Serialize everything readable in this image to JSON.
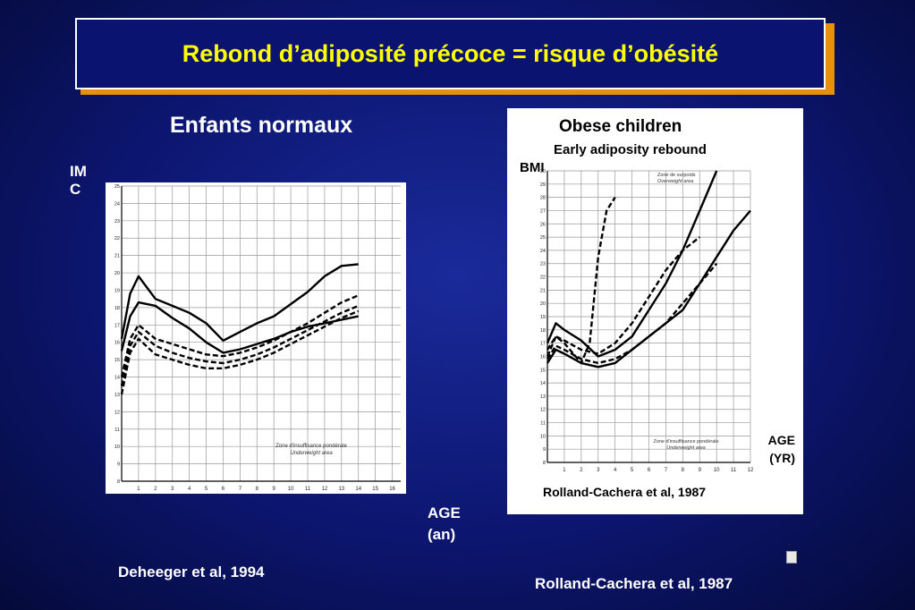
{
  "slide": {
    "title": "Rebond d’adiposité précoce = risque d’obésité",
    "subtitle_left": "Enfants normaux",
    "y_axis_label_left": "IMC",
    "x_axis_label_left": "AGE (an)",
    "citation_left": "Deheeger et al, 1994",
    "citation_right": "Rolland-Cachera et al, 1987",
    "colors": {
      "background": "#0c1670",
      "title_text": "#ffff00",
      "title_shadow": "#e8900a",
      "text": "#ffffff"
    }
  },
  "chart_data": [
    {
      "type": "line",
      "title": "",
      "xlabel": "",
      "ylabel": "",
      "xlim": [
        0,
        16.5
      ],
      "ylim": [
        8,
        25
      ],
      "x_ticks": [
        1,
        2,
        3,
        4,
        5,
        6,
        7,
        8,
        9,
        10,
        11,
        12,
        13,
        14,
        15,
        16
      ],
      "y_ticks": [
        8,
        9,
        10,
        11,
        12,
        13,
        14,
        15,
        16,
        17,
        18,
        19,
        20,
        21,
        22,
        23,
        24,
        25
      ],
      "annotation": [
        "Zone d'insuffisance pondérale",
        "Underweight area"
      ],
      "series": [
        {
          "style": "bold-solid",
          "x": [
            0,
            0.5,
            1,
            2,
            3,
            4,
            5,
            6,
            7,
            8,
            9,
            10,
            11,
            12,
            13,
            14
          ],
          "y": [
            16.2,
            18.8,
            19.8,
            18.5,
            18.1,
            17.7,
            17.1,
            16.1,
            16.6,
            17.1,
            17.5,
            18.2,
            18.9,
            19.8,
            20.4,
            20.5
          ]
        },
        {
          "style": "bold-solid",
          "x": [
            0,
            0.5,
            1,
            2,
            3,
            4,
            5,
            6,
            7,
            8,
            9,
            10,
            11,
            12,
            13,
            14
          ],
          "y": [
            15.5,
            17.5,
            18.3,
            18.1,
            17.4,
            16.8,
            16.0,
            15.4,
            15.6,
            15.9,
            16.2,
            16.6,
            16.9,
            17.1,
            17.3,
            17.5
          ]
        },
        {
          "style": "bold-dashed",
          "x": [
            0,
            0.5,
            1,
            2,
            3,
            4,
            5,
            6,
            7,
            8,
            9,
            10,
            11,
            12,
            13,
            14
          ],
          "y": [
            14.0,
            16.2,
            17.0,
            16.2,
            15.9,
            15.6,
            15.3,
            15.2,
            15.4,
            15.7,
            16.1,
            16.6,
            17.1,
            17.7,
            18.3,
            18.7
          ]
        },
        {
          "style": "bold-dashed",
          "x": [
            0,
            0.5,
            1,
            2,
            3,
            4,
            5,
            6,
            7,
            8,
            9,
            10,
            11,
            12,
            13,
            14
          ],
          "y": [
            13.5,
            15.8,
            16.6,
            15.8,
            15.4,
            15.1,
            14.9,
            14.8,
            15.0,
            15.3,
            15.7,
            16.2,
            16.7,
            17.2,
            17.7,
            18.1
          ]
        },
        {
          "style": "bold-dashed",
          "x": [
            0,
            0.5,
            1,
            2,
            3,
            4,
            5,
            6,
            7,
            8,
            9,
            10,
            11,
            12,
            13,
            14
          ],
          "y": [
            13.0,
            15.4,
            16.2,
            15.3,
            15.0,
            14.7,
            14.5,
            14.5,
            14.7,
            15.0,
            15.4,
            15.9,
            16.4,
            16.9,
            17.4,
            17.8
          ]
        }
      ]
    },
    {
      "type": "line",
      "title": "Obese children",
      "subtitle": "Early adiposity rebound",
      "ylabel": "BMI",
      "xlabel": "AGE (YR)",
      "xlim": [
        0,
        12
      ],
      "ylim": [
        8,
        30
      ],
      "x_ticks": [
        1,
        2,
        3,
        4,
        5,
        6,
        7,
        8,
        9,
        10,
        11,
        12
      ],
      "y_ticks": [
        8,
        9,
        10,
        11,
        12,
        13,
        14,
        15,
        16,
        17,
        18,
        19,
        20,
        21,
        22,
        23,
        24,
        25,
        26,
        27,
        28,
        29,
        30
      ],
      "annotations": [
        "Zone de surpoids",
        "Overweight area",
        "Zone d'insuffisance pondérale",
        "Underweight area"
      ],
      "footer": "Rolland-Cachera et al, 1987",
      "series": [
        {
          "style": "bold-dashed",
          "x": [
            0,
            0.5,
            1,
            2,
            2.5,
            3,
            3.5,
            4
          ],
          "y": [
            16.0,
            17.5,
            17.0,
            15.5,
            17.0,
            23.5,
            27.0,
            28.0
          ]
        },
        {
          "style": "bold-solid",
          "x": [
            0,
            0.5,
            1,
            2,
            3,
            4,
            5,
            6,
            7,
            8,
            9,
            10
          ],
          "y": [
            17.0,
            18.5,
            18.0,
            17.2,
            16.0,
            16.5,
            17.5,
            19.5,
            21.5,
            24.0,
            27.0,
            30.0
          ]
        },
        {
          "style": "bold-solid",
          "x": [
            0,
            0.5,
            1,
            2,
            3,
            4,
            5,
            6,
            7,
            8,
            9,
            10,
            11,
            12
          ],
          "y": [
            15.5,
            16.5,
            16.2,
            15.5,
            15.2,
            15.5,
            16.5,
            17.5,
            18.5,
            19.5,
            21.5,
            23.5,
            25.5,
            27.0
          ]
        },
        {
          "style": "bold-dashed",
          "x": [
            0,
            0.5,
            1,
            2,
            3,
            4,
            5,
            6,
            7,
            8,
            9
          ],
          "y": [
            16.5,
            17.5,
            17.2,
            16.5,
            16.2,
            17.0,
            18.5,
            20.5,
            22.5,
            24.0,
            25.0
          ]
        },
        {
          "style": "bold-dashed",
          "x": [
            0,
            0.5,
            1,
            2,
            3,
            4,
            5,
            6,
            7,
            8,
            9,
            10
          ],
          "y": [
            15.8,
            16.8,
            16.5,
            15.8,
            15.5,
            15.8,
            16.5,
            17.5,
            18.5,
            20.0,
            21.5,
            23.0
          ]
        }
      ]
    }
  ]
}
